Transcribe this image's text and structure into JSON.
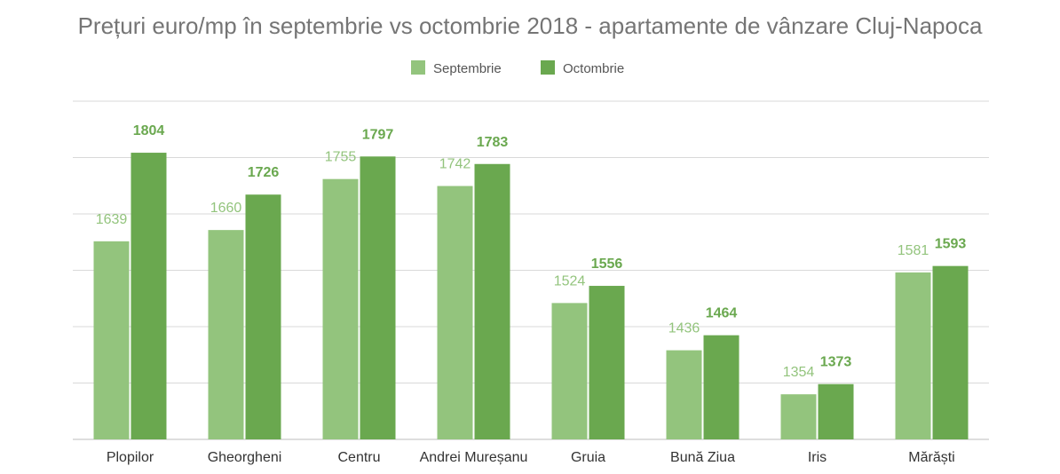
{
  "chart_data": {
    "type": "bar",
    "title": "Prețuri euro/mp în septembrie vs octombrie 2018 - apartamente de vânzare Cluj-Napoca",
    "xlabel": "",
    "ylabel": "",
    "categories": [
      "Plopilor",
      "Gheorgheni",
      "Centru",
      "Andrei Mureșanu",
      "Gruia",
      "Bună Ziua",
      "Iris",
      "Mărăști"
    ],
    "series": [
      {
        "name": "Septembrie",
        "color": "#93c47d",
        "label_color": "#93c47d",
        "values": [
          1639,
          1660,
          1755,
          1742,
          1524,
          1436,
          1354,
          1581
        ]
      },
      {
        "name": "Octombrie",
        "color": "#6aa84f",
        "label_color": "#6aa84f",
        "values": [
          1804,
          1726,
          1797,
          1783,
          1556,
          1464,
          1373,
          1593
        ]
      }
    ],
    "ylim": [
      1270,
      1900
    ],
    "gridlines": 10,
    "y_tick_labels_shown": false,
    "grid": true,
    "legend_position": "top-center",
    "data_labels": true
  }
}
